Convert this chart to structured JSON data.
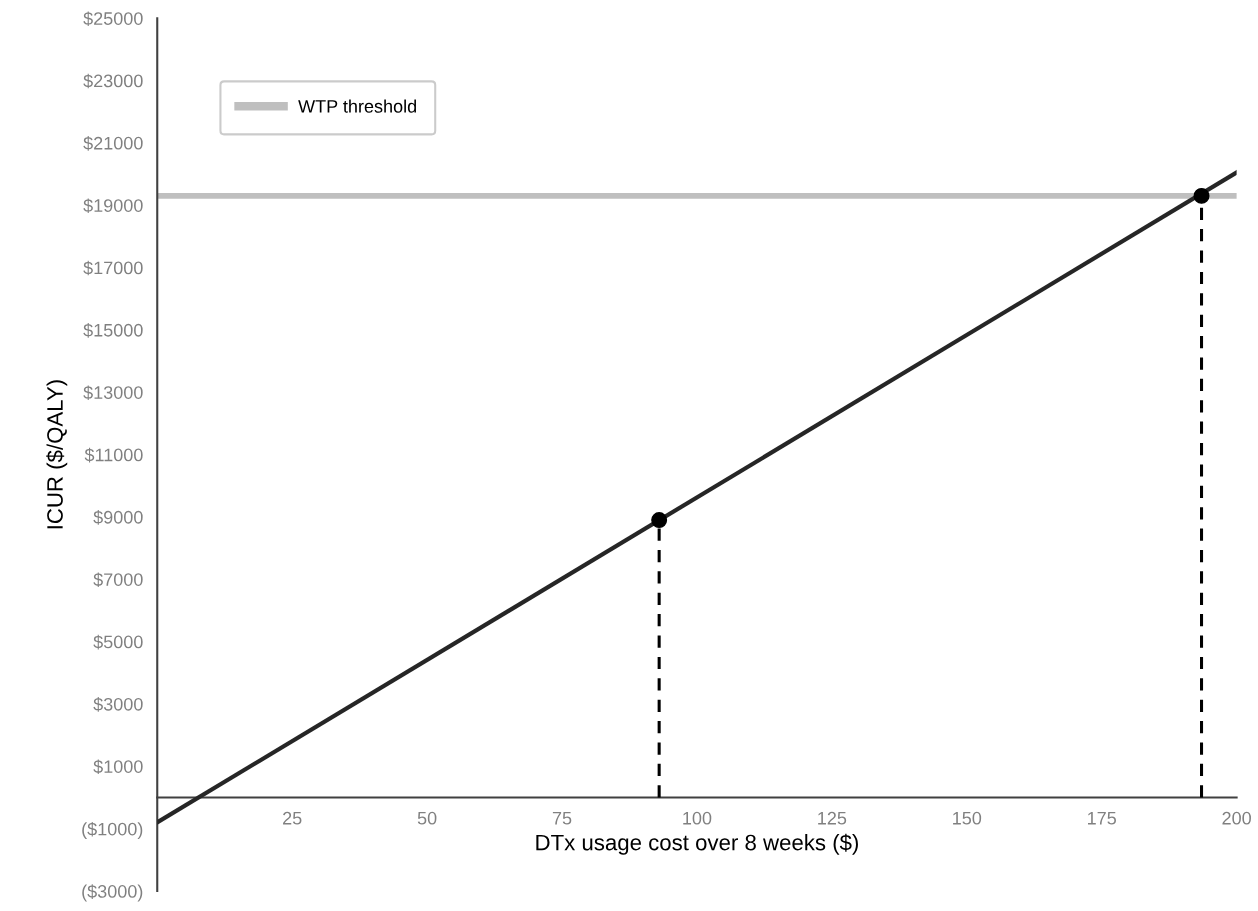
{
  "chart_data": {
    "type": "line",
    "xlabel": "DTx usage cost over 8 weeks ($)",
    "ylabel": "ICUR ($/QALY)",
    "xlim": [
      0,
      200
    ],
    "xticks": [
      25,
      50,
      75,
      100,
      125,
      150,
      175,
      200
    ],
    "ylim": [
      -3000,
      25000
    ],
    "yticks": [
      {
        "value": -3000,
        "label": "($3000)"
      },
      {
        "value": -1000,
        "label": "($1000)"
      },
      {
        "value": 1000,
        "label": "$1000"
      },
      {
        "value": 3000,
        "label": "$3000"
      },
      {
        "value": 5000,
        "label": "$5000"
      },
      {
        "value": 7000,
        "label": "$7000"
      },
      {
        "value": 9000,
        "label": "$9000"
      },
      {
        "value": 11000,
        "label": "$11000"
      },
      {
        "value": 13000,
        "label": "$13000"
      },
      {
        "value": 15000,
        "label": "$15000"
      },
      {
        "value": 17000,
        "label": "$17000"
      },
      {
        "value": 19000,
        "label": "$19000"
      },
      {
        "value": 21000,
        "label": "$21000"
      },
      {
        "value": 23000,
        "label": "$23000"
      },
      {
        "value": 25000,
        "label": "$25000"
      }
    ],
    "series": [
      {
        "color": "#262626",
        "x": [
          0,
          200
        ],
        "values": [
          -800,
          20050
        ],
        "marker": "none",
        "line_style": "solid"
      },
      {
        "color": "#000000",
        "x": [
          93,
          93
        ],
        "values": [
          0,
          8900
        ],
        "marker": "none",
        "line_style": "dashed"
      },
      {
        "color": "#000000",
        "x": [
          193.5,
          193.5
        ],
        "values": [
          0,
          19300
        ],
        "marker": "none",
        "line_style": "dashed"
      },
      {
        "type": "scatter",
        "color": "#000000",
        "x": [
          93,
          193.5
        ],
        "values": [
          8900,
          19300
        ],
        "marker": "circle"
      }
    ],
    "ref_lines": [
      {
        "axis": "y",
        "value": 19300,
        "label": "WTP threshold",
        "color": "#bfbfbf",
        "line_style": "solid"
      }
    ],
    "legend": "top left",
    "grid": false
  }
}
